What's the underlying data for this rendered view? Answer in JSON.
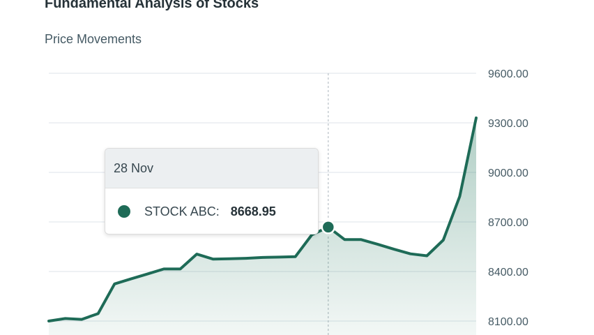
{
  "chart_data": {
    "type": "area",
    "title": "Fundamental Analysis of Stocks",
    "subtitle": "Price Movements",
    "series": [
      {
        "name": "STOCK ABC",
        "values": [
          8100,
          8115,
          8110,
          8145,
          8325,
          8355,
          8385,
          8415,
          8415,
          8505,
          8475,
          8477,
          8480,
          8485,
          8487,
          8490,
          8622,
          8669,
          8593,
          8593,
          8565,
          8535,
          8507,
          8495,
          8590,
          8855,
          9330
        ]
      }
    ],
    "ylim": [
      8050,
      9650
    ],
    "yticks": [
      "9600.00",
      "9300.00",
      "9000.00",
      "8700.00",
      "8400.00",
      "8100.00"
    ],
    "ytick_values": [
      9600,
      9300,
      9000,
      8700,
      8400,
      8100
    ],
    "y_axis_side": "right",
    "grid": true,
    "colors": {
      "line": "#1e6b57",
      "area": "#2e7d64"
    },
    "tooltip": {
      "date": "28 Nov",
      "series_label": "STOCK ABC:",
      "value": "8668.95",
      "point_index": 17
    }
  }
}
